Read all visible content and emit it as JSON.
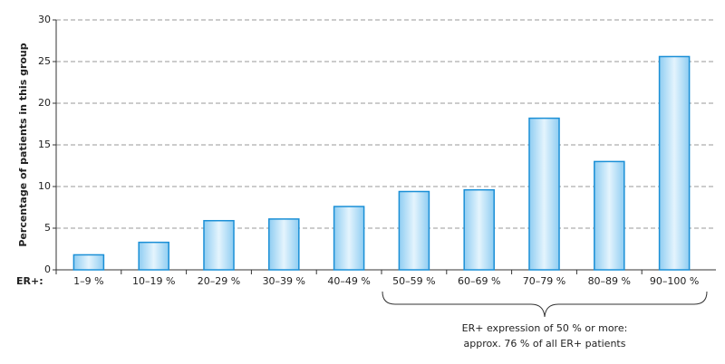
{
  "chart_data": {
    "type": "bar",
    "ylabel": "Percentage of patients in this group",
    "xlabel": "ER+:",
    "categories": [
      "1–9 %",
      "10–19 %",
      "20–29 %",
      "30–39 %",
      "40–49 %",
      "50–59 %",
      "60–69 %",
      "70–79 %",
      "80–89 %",
      "90–100 %"
    ],
    "values": [
      1.8,
      3.3,
      5.9,
      6.1,
      7.6,
      9.4,
      9.6,
      18.2,
      13.0,
      25.6
    ],
    "color": "#1a8fd6",
    "ylim": [
      0,
      30
    ],
    "yticks": [
      0,
      5,
      10,
      15,
      20,
      25,
      30
    ],
    "grid": true,
    "annotation": [
      "ER+ expression of 50 % or more:",
      "approx. 76 % of all ER+ patients"
    ]
  }
}
